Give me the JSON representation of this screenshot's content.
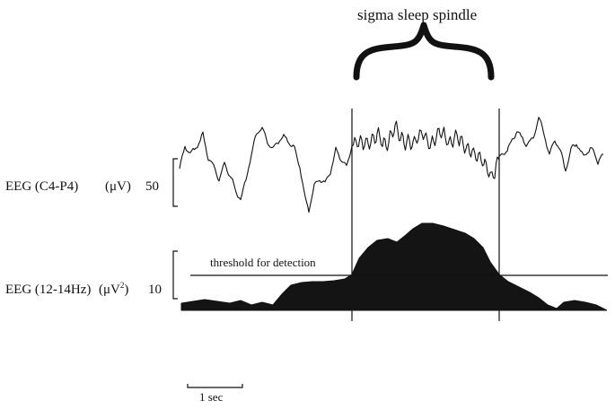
{
  "annotation": {
    "spindle": "sigma sleep spindle",
    "threshold": "threshold for detection"
  },
  "traces": {
    "raw": {
      "label": "EEG (C4-P4)",
      "unit": "(μV)",
      "scale_value": "50"
    },
    "power": {
      "label": "EEG (12-14Hz)",
      "unit_prefix": "(μV",
      "unit_power": "2",
      "unit_suffix": ")",
      "scale_value": "10"
    }
  },
  "time_scale": {
    "label": "1 sec"
  },
  "colors": {
    "ink": "#111111",
    "fill": "#141414"
  }
}
